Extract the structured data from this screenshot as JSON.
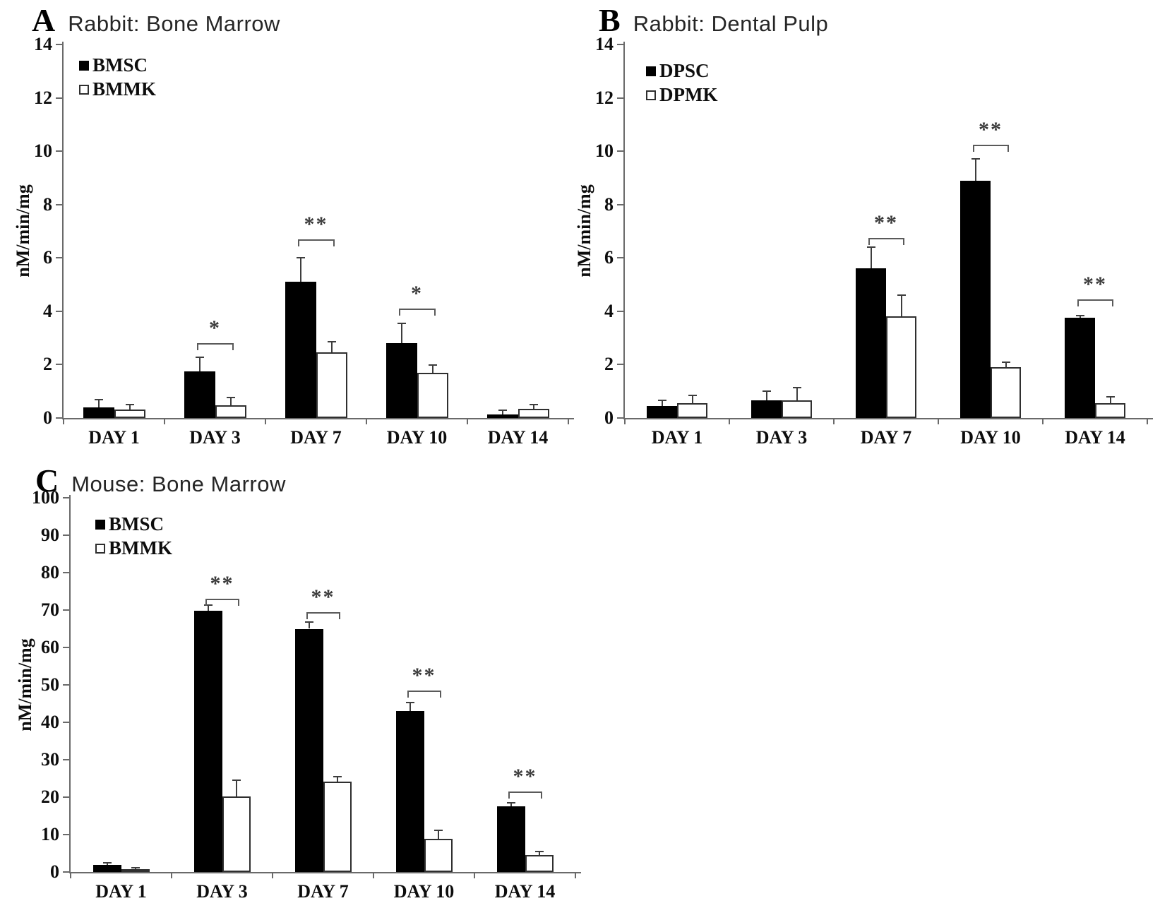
{
  "figure": {
    "background": "#ffffff",
    "bar_fill_color": "#000000",
    "bar_open_color": "#ffffff",
    "axis_color": "#6a6a6a",
    "text_color": "#0d0d0d"
  },
  "chart_data": [
    {
      "type": "bar",
      "panel_letter": "A",
      "title": "Rabbit: Bone Marrow",
      "xlabel": "",
      "ylabel": "nM/min/mg",
      "ylim": [
        0,
        14
      ],
      "yticks": [
        0,
        2,
        4,
        6,
        8,
        10,
        12,
        14
      ],
      "grid": false,
      "legend_position": "top-left-inside",
      "categories": [
        "DAY 1",
        "DAY 3",
        "DAY 7",
        "DAY 10",
        "DAY 14"
      ],
      "series": [
        {
          "name": "BMSC",
          "style": "filled",
          "color": "#000000",
          "values": [
            0.4,
            1.75,
            5.1,
            2.8,
            0.12
          ],
          "errors": [
            0.3,
            0.52,
            0.92,
            0.75,
            0.18
          ]
        },
        {
          "name": "BMMK",
          "style": "open",
          "color": "#ffffff",
          "values": [
            0.32,
            0.48,
            2.45,
            1.7,
            0.35
          ],
          "errors": [
            0.18,
            0.3,
            0.4,
            0.28,
            0.15
          ]
        }
      ],
      "significance": [
        {
          "category_index": 1,
          "label": "*",
          "y": 2.8
        },
        {
          "category_index": 2,
          "label": "**",
          "y": 6.7
        },
        {
          "category_index": 3,
          "label": "*",
          "y": 4.1
        }
      ]
    },
    {
      "type": "bar",
      "panel_letter": "B",
      "title": "Rabbit: Dental Pulp",
      "xlabel": "",
      "ylabel": "nM/min/mg",
      "ylim": [
        0,
        14
      ],
      "yticks": [
        0,
        2,
        4,
        6,
        8,
        10,
        12,
        14
      ],
      "grid": false,
      "legend_position": "top-left-inside",
      "categories": [
        "DAY 1",
        "DAY 3",
        "DAY 7",
        "DAY 10",
        "DAY 14"
      ],
      "series": [
        {
          "name": "DPSC",
          "style": "filled",
          "color": "#000000",
          "values": [
            0.45,
            0.65,
            5.6,
            8.9,
            3.75
          ],
          "errors": [
            0.2,
            0.35,
            0.8,
            0.8,
            0.1
          ]
        },
        {
          "name": "DPMK",
          "style": "open",
          "color": "#ffffff",
          "values": [
            0.55,
            0.65,
            3.8,
            1.9,
            0.55
          ],
          "errors": [
            0.3,
            0.5,
            0.8,
            0.2,
            0.25
          ]
        }
      ],
      "significance": [
        {
          "category_index": 2,
          "label": "**",
          "y": 6.75
        },
        {
          "category_index": 3,
          "label": "**",
          "y": 10.25
        },
        {
          "category_index": 4,
          "label": "**",
          "y": 4.45
        }
      ]
    },
    {
      "type": "bar",
      "panel_letter": "C",
      "title": "Mouse: Bone Marrow",
      "xlabel": "",
      "ylabel": "nM/min/mg",
      "ylim": [
        0,
        100
      ],
      "yticks": [
        0,
        10,
        20,
        30,
        40,
        50,
        60,
        70,
        80,
        90,
        100
      ],
      "grid": false,
      "legend_position": "top-left-inside",
      "categories": [
        "DAY 1",
        "DAY 3",
        "DAY 7",
        "DAY 10",
        "DAY 14"
      ],
      "series": [
        {
          "name": "BMSC",
          "style": "filled",
          "color": "#000000",
          "values": [
            1.8,
            69.8,
            65.0,
            43.0,
            17.5
          ],
          "errors": [
            0.6,
            1.5,
            1.8,
            2.2,
            0.9
          ]
        },
        {
          "name": "BMMK",
          "style": "open",
          "color": "#ffffff",
          "values": [
            0.8,
            20.2,
            24.2,
            8.8,
            4.5
          ],
          "errors": [
            0.3,
            4.3,
            1.3,
            2.4,
            0.9
          ]
        }
      ],
      "significance": [
        {
          "category_index": 1,
          "label": "**",
          "y": 73.0
        },
        {
          "category_index": 2,
          "label": "**",
          "y": 69.5
        },
        {
          "category_index": 3,
          "label": "**",
          "y": 48.5
        },
        {
          "category_index": 4,
          "label": "**",
          "y": 21.5
        }
      ]
    }
  ]
}
